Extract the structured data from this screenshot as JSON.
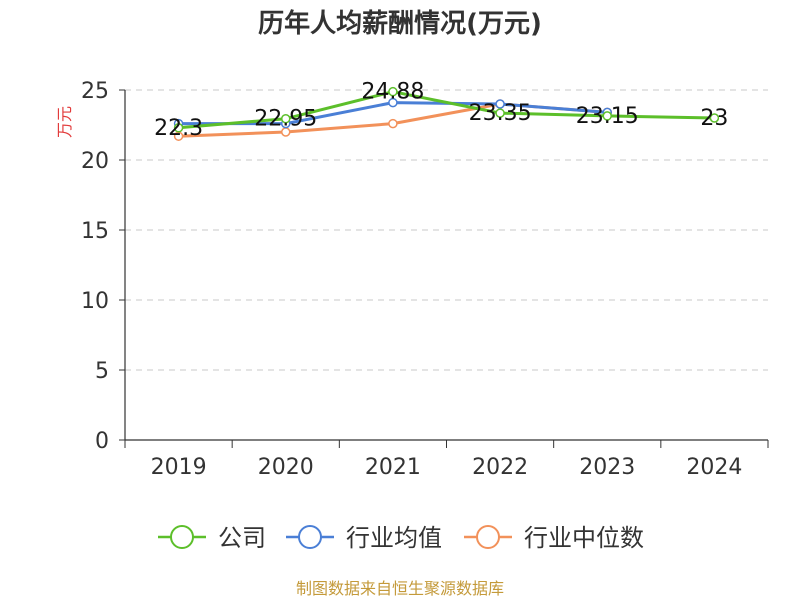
{
  "chart_data": {
    "type": "line",
    "title": "历年人均薪酬情况(万元)",
    "ylabel": "万元",
    "xlabel": "",
    "categories": [
      "2019",
      "2020",
      "2021",
      "2022",
      "2023",
      "2024"
    ],
    "ylim": [
      0,
      25
    ],
    "yticks": [
      0,
      5,
      10,
      15,
      20,
      25
    ],
    "grid": "horizontal-dashed",
    "legend_position": "bottom",
    "series": [
      {
        "name": "公司",
        "color": "#5cbf2a",
        "values": [
          22.3,
          22.95,
          24.88,
          23.35,
          23.15,
          23
        ],
        "labels": [
          "22.3",
          "22.95",
          "24.88",
          "23.35",
          "23.15",
          "23"
        ]
      },
      {
        "name": "行业均值",
        "color": "#4a7fd6",
        "values": [
          22.6,
          22.6,
          24.1,
          24.0,
          23.4,
          null
        ]
      },
      {
        "name": "行业中位数",
        "color": "#f2915a",
        "values": [
          21.7,
          22.0,
          22.6,
          24.0,
          23.4,
          null
        ]
      }
    ]
  },
  "source": "制图数据来自恒生聚源数据库"
}
